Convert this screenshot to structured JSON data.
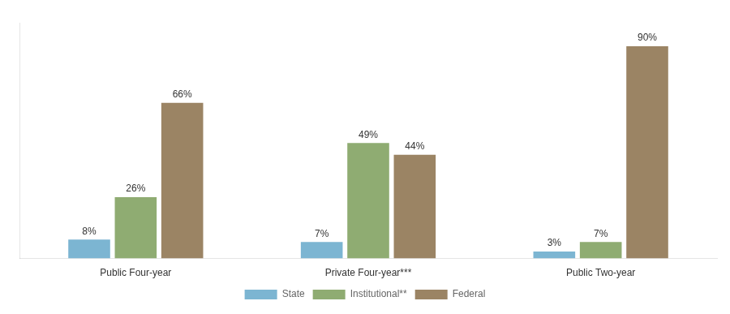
{
  "chart_data": {
    "type": "bar",
    "categories": [
      "Public Four-year",
      "Private Four-year***",
      "Public Two-year"
    ],
    "series": [
      {
        "name": "State",
        "color": "#7cb5d2",
        "values": [
          8,
          7,
          3
        ],
        "value_labels": [
          "8%",
          "7%",
          "3%"
        ]
      },
      {
        "name": "Institutional**",
        "color": "#8fac72",
        "values": [
          26,
          49,
          7
        ],
        "value_labels": [
          "26%",
          "49%",
          "7%"
        ]
      },
      {
        "name": "Federal",
        "color": "#9b8464",
        "values": [
          66,
          44,
          90
        ],
        "value_labels": [
          "66%",
          "44%",
          "90%"
        ]
      }
    ],
    "ylim": [
      0,
      100
    ],
    "grid": false,
    "legend": "bottom",
    "data_labels": true,
    "tick_labels": "x"
  }
}
